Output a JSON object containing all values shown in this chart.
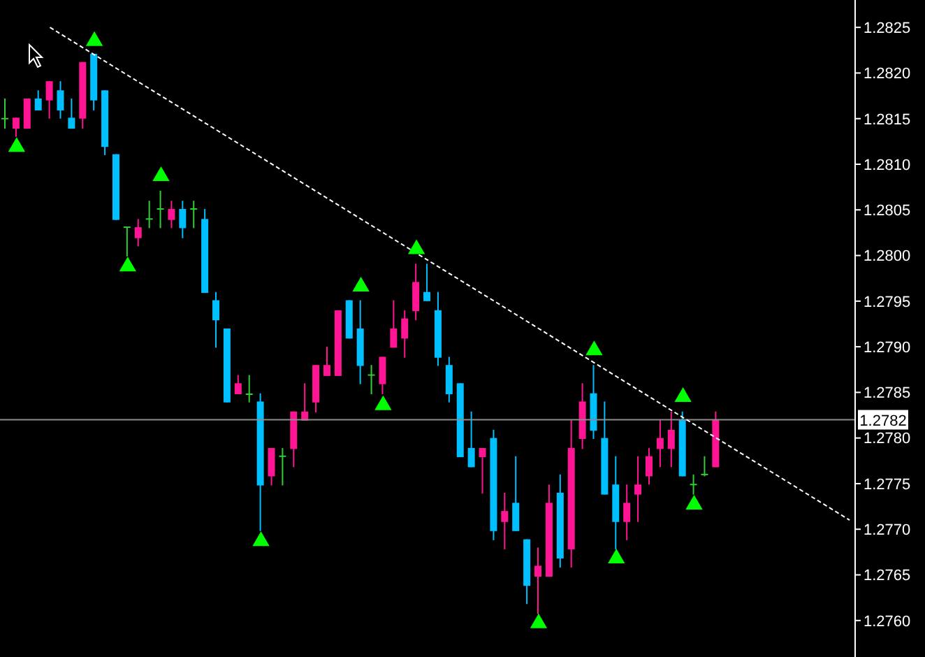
{
  "chart_data": {
    "type": "candlestick",
    "categories": [
      null,
      null,
      null,
      null,
      null,
      null,
      null,
      null,
      null,
      null,
      null,
      null,
      null,
      null,
      null,
      null,
      null,
      null,
      null,
      null,
      null,
      null,
      null,
      null,
      null,
      null,
      null,
      null,
      null,
      null,
      null,
      null,
      null,
      null,
      null,
      null,
      null,
      null,
      null,
      null,
      null,
      null,
      null,
      null,
      null,
      null,
      null,
      null,
      null,
      null,
      null,
      null,
      null,
      null,
      null,
      null,
      null,
      null,
      null,
      null,
      null,
      null,
      null,
      null,
      null,
      null,
      null,
      null,
      null,
      null,
      null,
      null,
      null,
      null,
      null,
      null,
      null
    ],
    "ohlc": [
      [
        1.2815,
        1.28172,
        1.28139,
        1.2815
      ],
      [
        1.28139,
        1.28151,
        1.2813,
        1.28151
      ],
      [
        1.28139,
        1.28172,
        1.28139,
        1.28172
      ],
      [
        1.28172,
        1.28181,
        1.28159,
        1.28159
      ],
      [
        1.2817,
        1.28191,
        1.2815,
        1.28191
      ],
      [
        1.28181,
        1.28191,
        1.2815,
        1.28159
      ],
      [
        1.28151,
        1.28172,
        1.28139,
        1.28139
      ],
      [
        1.2815,
        1.28212,
        1.28139,
        1.28212
      ],
      [
        1.28221,
        1.28221,
        1.28159,
        1.2817
      ],
      [
        1.28181,
        1.28181,
        1.2811,
        1.28119
      ],
      [
        1.28111,
        1.28111,
        1.28039,
        1.28039
      ],
      [
        1.28031,
        1.28031,
        1.27999,
        1.28031
      ],
      [
        1.28019,
        1.2804,
        1.2801,
        1.28031
      ],
      [
        1.2804,
        1.2806,
        1.2803,
        1.2804
      ],
      [
        1.28051,
        1.28071,
        1.2803,
        1.28051
      ],
      [
        1.28039,
        1.2806,
        1.2803,
        1.28051
      ],
      [
        1.28051,
        1.2806,
        1.28019,
        1.2803
      ],
      [
        1.28051,
        1.2806,
        1.2803,
        1.28051
      ],
      [
        1.2804,
        1.28051,
        1.27959,
        1.27959
      ],
      [
        1.27951,
        1.2796,
        1.27899,
        1.27929
      ],
      [
        1.2792,
        1.2792,
        1.27839,
        1.27839
      ],
      [
        1.27848,
        1.27869,
        1.27848,
        1.2786
      ],
      [
        1.27848,
        1.27869,
        1.27839,
        1.27848
      ],
      [
        1.2784,
        1.27849,
        1.27698,
        1.27748
      ],
      [
        1.27758,
        1.27789,
        1.27748,
        1.27789
      ],
      [
        1.2778,
        1.27789,
        1.27748,
        1.2778
      ],
      [
        1.27788,
        1.27829,
        1.27768,
        1.27829
      ],
      [
        1.27819,
        1.2786,
        1.27819,
        1.27829
      ],
      [
        1.27839,
        1.2788,
        1.27828,
        1.2788
      ],
      [
        1.27868,
        1.279,
        1.27868,
        1.2788
      ],
      [
        1.27868,
        1.2794,
        1.27868,
        1.2794
      ],
      [
        1.27951,
        1.27951,
        1.27909,
        1.27909
      ],
      [
        1.2792,
        1.27951,
        1.27859,
        1.27879
      ],
      [
        1.27869,
        1.2788,
        1.27848,
        1.27869
      ],
      [
        1.27859,
        1.27889,
        1.27848,
        1.27889
      ],
      [
        1.27899,
        1.27951,
        1.27899,
        1.2792
      ],
      [
        1.27909,
        1.2794,
        1.27888,
        1.27931
      ],
      [
        1.27939,
        1.27991,
        1.27929,
        1.27971
      ],
      [
        1.2796,
        1.27991,
        1.2795,
        1.2795
      ],
      [
        1.2794,
        1.2796,
        1.27879,
        1.27888
      ],
      [
        1.2788,
        1.27889,
        1.27839,
        1.27848
      ],
      [
        1.2786,
        1.2786,
        1.27779,
        1.27779
      ],
      [
        1.27789,
        1.27829,
        1.27768,
        1.27768
      ],
      [
        1.27779,
        1.27789,
        1.27739,
        1.27789
      ],
      [
        1.278,
        1.27809,
        1.27688,
        1.27698
      ],
      [
        1.27708,
        1.2774,
        1.27678,
        1.2772
      ],
      [
        1.27729,
        1.2778,
        1.27698,
        1.27698
      ],
      [
        1.27689,
        1.27689,
        1.27618,
        1.27638
      ],
      [
        1.27648,
        1.2768,
        1.27607,
        1.2766
      ],
      [
        1.27648,
        1.27749,
        1.27648,
        1.27729
      ],
      [
        1.2774,
        1.2776,
        1.27658,
        1.27668
      ],
      [
        1.27678,
        1.2782,
        1.27658,
        1.27789
      ],
      [
        1.27799,
        1.2786,
        1.27788,
        1.2784
      ],
      [
        1.27849,
        1.2788,
        1.27799,
        1.27808
      ],
      [
        1.278,
        1.2784,
        1.27738,
        1.27738
      ],
      [
        1.27749,
        1.2778,
        1.27678,
        1.27708
      ],
      [
        1.27708,
        1.27749,
        1.27688,
        1.27729
      ],
      [
        1.27738,
        1.2778,
        1.27708,
        1.27749
      ],
      [
        1.27758,
        1.27789,
        1.27749,
        1.2778
      ],
      [
        1.27788,
        1.2782,
        1.27768,
        1.278
      ],
      [
        1.27788,
        1.27829,
        1.27768,
        1.27809
      ],
      [
        1.2782,
        1.27829,
        1.27758,
        1.27758
      ],
      [
        1.27749,
        1.2776,
        1.27738,
        1.27749
      ],
      [
        1.2776,
        1.2778,
        1.27758,
        1.2776
      ],
      [
        1.27768,
        1.27829,
        1.27768,
        1.2782
      ],
      null,
      null,
      null,
      null,
      null,
      null,
      null,
      null,
      null,
      null,
      null,
      null
    ],
    "colors": [
      "#32cd32",
      "#ff1493",
      "#ff1493",
      "#00bfff",
      "#ff1493",
      "#00bfff",
      "#00bfff",
      "#ff1493",
      "#00bfff",
      "#00bfff",
      "#00bfff",
      "#32cd32",
      "#ff1493",
      "#32cd32",
      "#32cd32",
      "#ff1493",
      "#00bfff",
      "#32cd32",
      "#00bfff",
      "#00bfff",
      "#00bfff",
      "#ff1493",
      "#32cd32",
      "#00bfff",
      "#ff1493",
      "#32cd32",
      "#ff1493",
      "#ff1493",
      "#ff1493",
      "#ff1493",
      "#ff1493",
      "#00bfff",
      "#00bfff",
      "#32cd32",
      "#ff1493",
      "#ff1493",
      "#ff1493",
      "#ff1493",
      "#00bfff",
      "#00bfff",
      "#00bfff",
      "#00bfff",
      "#00bfff",
      "#ff1493",
      "#00bfff",
      "#ff1493",
      "#00bfff",
      "#00bfff",
      "#ff1493",
      "#ff1493",
      "#00bfff",
      "#ff1493",
      "#ff1493",
      "#00bfff",
      "#00bfff",
      "#00bfff",
      "#ff1493",
      "#ff1493",
      "#ff1493",
      "#ff1493",
      "#ff1493",
      "#00bfff",
      "#32cd32",
      "#32cd32",
      "#ff1493",
      null,
      null,
      null,
      null,
      null,
      null,
      null,
      null,
      null,
      null,
      null,
      null
    ],
    "series": [
      {
        "type": "line",
        "color": "#ffffff",
        "line_style": "dashed",
        "values": [
          null,
          null,
          null,
          null,
          1.2825,
          null,
          null,
          null,
          null,
          null,
          null,
          null,
          null,
          null,
          null,
          null,
          null,
          null,
          null,
          null,
          null,
          null,
          null,
          null,
          null,
          null,
          null,
          null,
          null,
          null,
          null,
          null,
          null,
          null,
          null,
          null,
          null,
          null,
          null,
          null,
          null,
          null,
          null,
          null,
          null,
          null,
          null,
          null,
          null,
          null,
          null,
          null,
          null,
          null,
          null,
          null,
          null,
          null,
          null,
          null,
          null,
          null,
          null,
          null,
          null,
          null,
          null,
          null,
          null,
          null,
          null,
          null,
          null,
          null,
          null,
          null,
          1.2771
        ]
      },
      {
        "type": "scatter",
        "color": "#00ff00",
        "marker": "triangle",
        "values": [
          null,
          null,
          null,
          null,
          null,
          null,
          null,
          null,
          1.28235,
          null,
          null,
          null,
          null,
          null,
          1.28087,
          null,
          null,
          null,
          null,
          null,
          null,
          null,
          null,
          null,
          null,
          null,
          null,
          null,
          null,
          null,
          null,
          null,
          1.27966,
          null,
          null,
          null,
          null,
          1.28007,
          null,
          null,
          null,
          null,
          null,
          null,
          null,
          null,
          null,
          null,
          null,
          null,
          null,
          null,
          null,
          1.27896,
          null,
          null,
          null,
          null,
          null,
          null,
          null,
          1.27845,
          null,
          null,
          null,
          null,
          null,
          null,
          null,
          null,
          null,
          null,
          null,
          null,
          null,
          null,
          null
        ]
      },
      {
        "type": "scatter",
        "color": "#00ff00",
        "marker": "triangle",
        "values": [
          null,
          1.28119,
          null,
          null,
          null,
          null,
          null,
          null,
          null,
          null,
          null,
          1.27988,
          null,
          null,
          null,
          null,
          null,
          null,
          null,
          null,
          null,
          null,
          null,
          1.27687,
          null,
          null,
          null,
          null,
          null,
          null,
          null,
          null,
          null,
          null,
          1.27836,
          null,
          null,
          null,
          null,
          null,
          null,
          null,
          null,
          null,
          null,
          null,
          null,
          null,
          1.27597,
          null,
          null,
          null,
          null,
          null,
          null,
          1.27668,
          null,
          null,
          null,
          null,
          null,
          null,
          1.27727,
          null,
          null,
          null,
          null,
          null,
          null,
          null,
          null,
          null,
          null,
          null,
          null,
          null,
          null
        ]
      }
    ],
    "ylim": [
      1.2756,
      1.2828
    ],
    "yticks": [
      {
        "value": 1.276,
        "label": "1.2760"
      },
      1.2765,
      {
        "value": 1.277,
        "label": "1.2770"
      },
      1.2775,
      {
        "value": 1.278,
        "label": "1.2780"
      },
      1.2785,
      {
        "value": 1.279,
        "label": "1.2790"
      },
      1.2795,
      {
        "value": 1.28,
        "label": "1.2800"
      },
      1.2805,
      {
        "value": 1.281,
        "label": "1.2810"
      },
      1.2815,
      {
        "value": 1.282,
        "label": "1.2820"
      },
      1.2825
    ],
    "ref_lines": [
      {
        "axis": "y",
        "value": 1.2782,
        "label": "1.2782",
        "color": "#8c8c8c"
      }
    ],
    "tick_labels": "y"
  }
}
